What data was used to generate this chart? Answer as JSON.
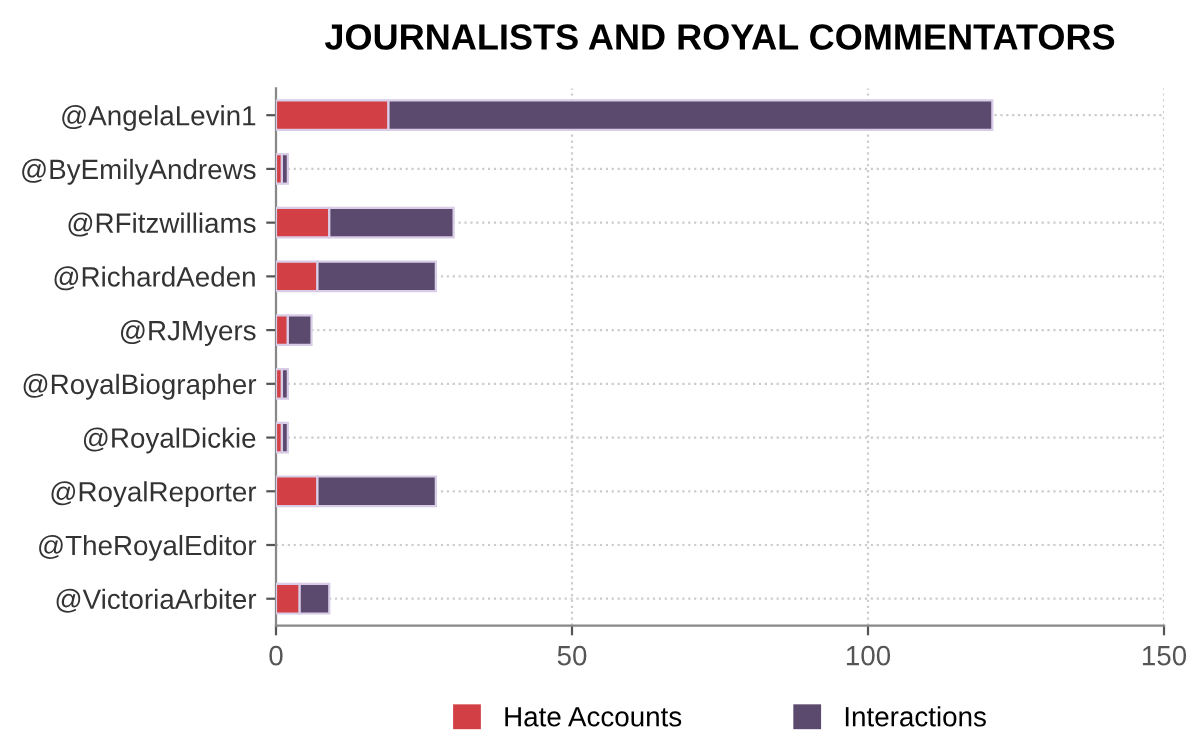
{
  "chart_data": {
    "type": "bar",
    "orientation": "horizontal",
    "stacked": true,
    "title": "JOURNALISTS AND ROYAL COMMENTATORS",
    "categories": [
      "@AngelaLevin1",
      "@ByEmilyAndrews",
      "@RFitzwilliams",
      "@RichardAeden",
      "@RJMyers",
      "@RoyalBiographer",
      "@RoyalDickie",
      "@RoyalReporter",
      "@TheRoyalEditor",
      "@VictoriaArbiter"
    ],
    "series": [
      {
        "name": "Hate Accounts",
        "color": "#d24045",
        "values": [
          19,
          1,
          9,
          7,
          2,
          1,
          1,
          7,
          0,
          4
        ]
      },
      {
        "name": "Interactions",
        "color": "#5c4a6e",
        "values": [
          102,
          1,
          21,
          20,
          4,
          1,
          1,
          20,
          0,
          5
        ]
      }
    ],
    "xlim": [
      0,
      150
    ],
    "xticks": [
      0,
      50,
      100,
      150
    ],
    "grid": true,
    "legend": "bottom"
  }
}
